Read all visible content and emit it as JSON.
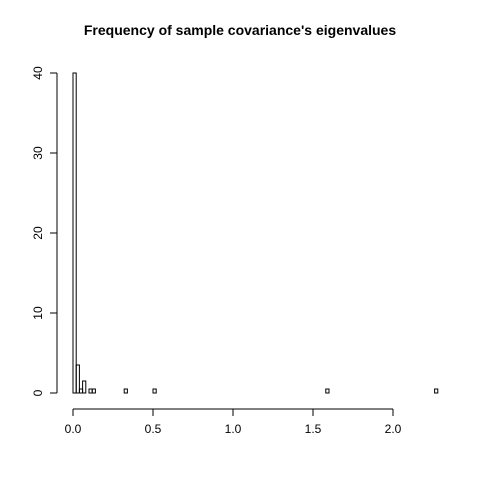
{
  "chart_data": {
    "type": "bar",
    "title": "Frequency of sample covariance's eigenvalues",
    "xlabel": "",
    "ylabel": "",
    "xlim": [
      0.0,
      2.3
    ],
    "ylim": [
      0,
      40
    ],
    "x_ticks": [
      0.0,
      0.5,
      1.0,
      1.5,
      2.0
    ],
    "x_tick_labels": [
      "0.0",
      "0.5",
      "1.0",
      "1.5",
      "2.0"
    ],
    "y_ticks": [
      0,
      10,
      20,
      30,
      40
    ],
    "y_tick_labels": [
      "0",
      "10",
      "20",
      "30",
      "40"
    ],
    "bin_width": 0.02,
    "bars": [
      {
        "x0": 0.0,
        "x1": 0.02,
        "count": 40
      },
      {
        "x0": 0.02,
        "x1": 0.04,
        "count": 3.5
      },
      {
        "x0": 0.04,
        "x1": 0.06,
        "count": 0.5
      },
      {
        "x0": 0.06,
        "x1": 0.08,
        "count": 1.5
      },
      {
        "x0": 0.08,
        "x1": 0.1,
        "count": 0
      },
      {
        "x0": 0.1,
        "x1": 0.12,
        "count": 0.5
      },
      {
        "x0": 0.12,
        "x1": 0.14,
        "count": 0.5
      },
      {
        "x0": 0.32,
        "x1": 0.34,
        "count": 0.5
      },
      {
        "x0": 0.5,
        "x1": 0.52,
        "count": 0.5
      },
      {
        "x0": 1.58,
        "x1": 1.6,
        "count": 0.5
      },
      {
        "x0": 2.26,
        "x1": 2.28,
        "count": 0.5
      }
    ],
    "grid": false,
    "legend": "none"
  }
}
